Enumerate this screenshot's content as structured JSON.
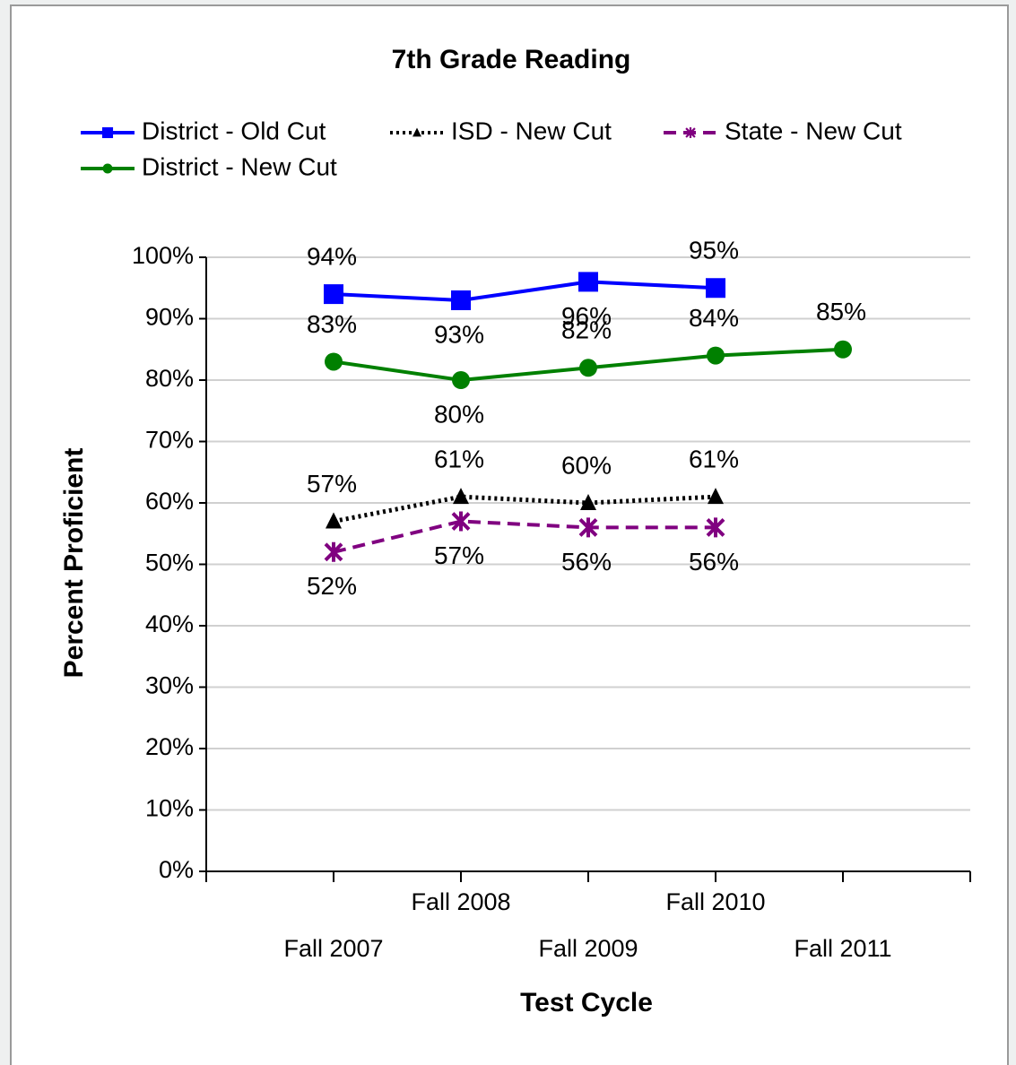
{
  "chart_data": {
    "type": "line",
    "title": "7th Grade Reading",
    "x_label": "Test Cycle",
    "y_label": "Percent Proficient",
    "categories": [
      null,
      "Fall 2007",
      "Fall 2008",
      "Fall 2009",
      "Fall 2010",
      "Fall 2011",
      null
    ],
    "series": [
      {
        "name": "District - Old Cut",
        "color": "#0000ff",
        "marker": "square",
        "dash": "solid",
        "values": [
          null,
          94,
          93,
          96,
          95,
          null,
          null
        ],
        "value_labels": [
          null,
          "94%",
          "93%",
          "96%",
          "95%",
          null,
          null
        ]
      },
      {
        "name": "ISD - New Cut",
        "color": "#000000",
        "marker": "triangle",
        "dash": "dotted",
        "values": [
          null,
          57,
          61,
          60,
          61,
          null,
          null
        ],
        "value_labels": [
          null,
          "57%",
          "61%",
          "60%",
          "61%",
          null,
          null
        ]
      },
      {
        "name": "State - New Cut",
        "color": "#800080",
        "marker": "star",
        "dash": "dashed",
        "values": [
          null,
          52,
          57,
          56,
          56,
          null,
          null
        ],
        "value_labels": [
          null,
          "52%",
          "57%",
          "56%",
          "56%",
          null,
          null
        ]
      },
      {
        "name": "District - New Cut",
        "color": "#008000",
        "marker": "circle",
        "dash": "solid",
        "values": [
          null,
          83,
          80,
          82,
          84,
          85,
          null
        ],
        "value_labels": [
          null,
          "83%",
          "80%",
          "82%",
          "84%",
          "85%",
          null
        ]
      }
    ],
    "ylim": [
      0,
      100
    ],
    "yticks": [
      {
        "value": 0,
        "label": "0%"
      },
      {
        "value": 10,
        "label": "10%"
      },
      {
        "value": 20,
        "label": "20%"
      },
      {
        "value": 30,
        "label": "30%"
      },
      {
        "value": 40,
        "label": "40%"
      },
      {
        "value": 50,
        "label": "50%"
      },
      {
        "value": 60,
        "label": "60%"
      },
      {
        "value": 70,
        "label": "70%"
      },
      {
        "value": 80,
        "label": "80%"
      },
      {
        "value": 90,
        "label": "90%"
      },
      {
        "value": 100,
        "label": "100%"
      }
    ],
    "grid": true,
    "legend": "top"
  }
}
